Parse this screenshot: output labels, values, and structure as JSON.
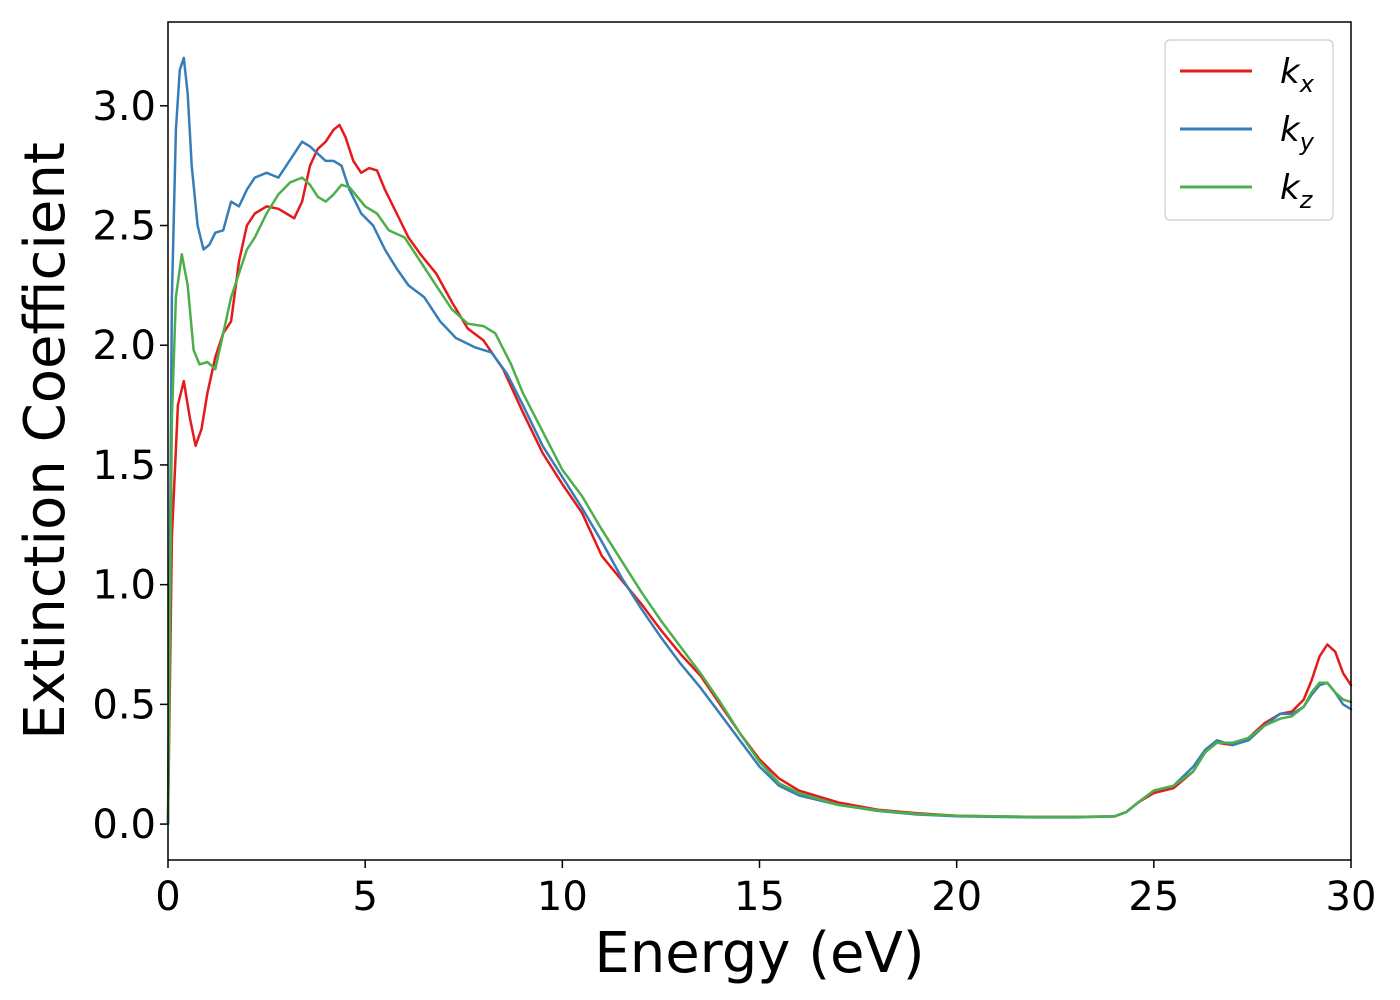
{
  "chart_data": {
    "type": "line",
    "title": "",
    "xlabel": "Energy (eV)",
    "ylabel": "Extinction Coefficient",
    "xlim": [
      0,
      30
    ],
    "ylim": [
      -0.15,
      3.35
    ],
    "xticks": [
      0,
      5,
      10,
      15,
      20,
      25,
      30
    ],
    "yticks": [
      0.0,
      0.5,
      1.0,
      1.5,
      2.0,
      2.5,
      3.0
    ],
    "xtick_labels": [
      "0",
      "5",
      "10",
      "15",
      "20",
      "25",
      "30"
    ],
    "ytick_labels": [
      "0.0",
      "0.5",
      "1.0",
      "1.5",
      "2.0",
      "2.5",
      "3.0"
    ],
    "grid": false,
    "legend": "top-right",
    "series": [
      {
        "name": "k_x",
        "label_base": "k",
        "label_sub": "x",
        "color": "#e41a1c",
        "points": [
          [
            0,
            0
          ],
          [
            0.1,
            1.2
          ],
          [
            0.25,
            1.75
          ],
          [
            0.4,
            1.85
          ],
          [
            0.55,
            1.7
          ],
          [
            0.7,
            1.58
          ],
          [
            0.85,
            1.65
          ],
          [
            1.0,
            1.8
          ],
          [
            1.2,
            1.95
          ],
          [
            1.4,
            2.05
          ],
          [
            1.6,
            2.1
          ],
          [
            1.8,
            2.35
          ],
          [
            2.0,
            2.5
          ],
          [
            2.2,
            2.55
          ],
          [
            2.5,
            2.58
          ],
          [
            2.8,
            2.57
          ],
          [
            3.0,
            2.55
          ],
          [
            3.2,
            2.53
          ],
          [
            3.4,
            2.6
          ],
          [
            3.6,
            2.75
          ],
          [
            3.8,
            2.82
          ],
          [
            4.0,
            2.85
          ],
          [
            4.2,
            2.9
          ],
          [
            4.35,
            2.92
          ],
          [
            4.5,
            2.87
          ],
          [
            4.7,
            2.77
          ],
          [
            4.9,
            2.72
          ],
          [
            5.1,
            2.74
          ],
          [
            5.3,
            2.73
          ],
          [
            5.5,
            2.65
          ],
          [
            5.8,
            2.55
          ],
          [
            6.1,
            2.45
          ],
          [
            6.4,
            2.38
          ],
          [
            6.8,
            2.3
          ],
          [
            7.2,
            2.18
          ],
          [
            7.6,
            2.07
          ],
          [
            8.0,
            2.02
          ],
          [
            8.5,
            1.9
          ],
          [
            9.0,
            1.72
          ],
          [
            9.5,
            1.55
          ],
          [
            10.0,
            1.42
          ],
          [
            10.5,
            1.3
          ],
          [
            11.0,
            1.12
          ],
          [
            11.5,
            1.02
          ],
          [
            12.0,
            0.92
          ],
          [
            12.5,
            0.81
          ],
          [
            13.0,
            0.71
          ],
          [
            13.5,
            0.62
          ],
          [
            14.0,
            0.5
          ],
          [
            14.5,
            0.38
          ],
          [
            15.0,
            0.27
          ],
          [
            15.5,
            0.19
          ],
          [
            16.0,
            0.14
          ],
          [
            17.0,
            0.09
          ],
          [
            18.0,
            0.06
          ],
          [
            19.0,
            0.045
          ],
          [
            20.0,
            0.035
          ],
          [
            21.0,
            0.032
          ],
          [
            22.0,
            0.03
          ],
          [
            23.0,
            0.03
          ],
          [
            24.0,
            0.032
          ],
          [
            24.3,
            0.05
          ],
          [
            24.6,
            0.09
          ],
          [
            25.0,
            0.13
          ],
          [
            25.5,
            0.15
          ],
          [
            26.0,
            0.22
          ],
          [
            26.3,
            0.3
          ],
          [
            26.6,
            0.34
          ],
          [
            27.0,
            0.33
          ],
          [
            27.4,
            0.36
          ],
          [
            27.8,
            0.42
          ],
          [
            28.2,
            0.46
          ],
          [
            28.5,
            0.47
          ],
          [
            28.8,
            0.52
          ],
          [
            29.0,
            0.6
          ],
          [
            29.2,
            0.7
          ],
          [
            29.4,
            0.75
          ],
          [
            29.6,
            0.72
          ],
          [
            29.8,
            0.63
          ],
          [
            30.0,
            0.58
          ]
        ]
      },
      {
        "name": "k_y",
        "label_base": "k",
        "label_sub": "y",
        "color": "#377eb8",
        "points": [
          [
            0,
            0
          ],
          [
            0.1,
            2.2
          ],
          [
            0.2,
            2.9
          ],
          [
            0.3,
            3.15
          ],
          [
            0.4,
            3.2
          ],
          [
            0.5,
            3.05
          ],
          [
            0.6,
            2.75
          ],
          [
            0.75,
            2.5
          ],
          [
            0.9,
            2.4
          ],
          [
            1.05,
            2.42
          ],
          [
            1.2,
            2.47
          ],
          [
            1.4,
            2.48
          ],
          [
            1.6,
            2.6
          ],
          [
            1.8,
            2.58
          ],
          [
            2.0,
            2.65
          ],
          [
            2.2,
            2.7
          ],
          [
            2.5,
            2.72
          ],
          [
            2.8,
            2.7
          ],
          [
            3.0,
            2.75
          ],
          [
            3.2,
            2.8
          ],
          [
            3.4,
            2.85
          ],
          [
            3.6,
            2.83
          ],
          [
            3.8,
            2.8
          ],
          [
            4.0,
            2.77
          ],
          [
            4.2,
            2.77
          ],
          [
            4.4,
            2.75
          ],
          [
            4.6,
            2.65
          ],
          [
            4.9,
            2.55
          ],
          [
            5.2,
            2.5
          ],
          [
            5.5,
            2.4
          ],
          [
            5.8,
            2.32
          ],
          [
            6.1,
            2.25
          ],
          [
            6.5,
            2.2
          ],
          [
            6.9,
            2.1
          ],
          [
            7.3,
            2.03
          ],
          [
            7.8,
            1.99
          ],
          [
            8.2,
            1.97
          ],
          [
            8.6,
            1.88
          ],
          [
            9.0,
            1.75
          ],
          [
            9.5,
            1.58
          ],
          [
            10.0,
            1.45
          ],
          [
            10.5,
            1.32
          ],
          [
            11.0,
            1.18
          ],
          [
            11.5,
            1.03
          ],
          [
            12.0,
            0.9
          ],
          [
            12.5,
            0.78
          ],
          [
            13.0,
            0.67
          ],
          [
            13.5,
            0.57
          ],
          [
            14.0,
            0.46
          ],
          [
            14.5,
            0.35
          ],
          [
            15.0,
            0.24
          ],
          [
            15.5,
            0.16
          ],
          [
            16.0,
            0.12
          ],
          [
            17.0,
            0.08
          ],
          [
            18.0,
            0.055
          ],
          [
            19.0,
            0.04
          ],
          [
            20.0,
            0.033
          ],
          [
            21.0,
            0.03
          ],
          [
            22.0,
            0.028
          ],
          [
            23.0,
            0.028
          ],
          [
            24.0,
            0.032
          ],
          [
            24.3,
            0.05
          ],
          [
            24.6,
            0.09
          ],
          [
            25.0,
            0.14
          ],
          [
            25.5,
            0.16
          ],
          [
            26.0,
            0.24
          ],
          [
            26.3,
            0.31
          ],
          [
            26.6,
            0.35
          ],
          [
            27.0,
            0.33
          ],
          [
            27.4,
            0.35
          ],
          [
            27.8,
            0.41
          ],
          [
            28.2,
            0.46
          ],
          [
            28.5,
            0.46
          ],
          [
            28.8,
            0.49
          ],
          [
            29.0,
            0.54
          ],
          [
            29.2,
            0.58
          ],
          [
            29.4,
            0.59
          ],
          [
            29.6,
            0.55
          ],
          [
            29.8,
            0.5
          ],
          [
            30.0,
            0.48
          ]
        ]
      },
      {
        "name": "k_z",
        "label_base": "k",
        "label_sub": "z",
        "color": "#4daf4a",
        "points": [
          [
            0,
            0
          ],
          [
            0.1,
            1.7
          ],
          [
            0.2,
            2.2
          ],
          [
            0.35,
            2.38
          ],
          [
            0.5,
            2.25
          ],
          [
            0.65,
            1.98
          ],
          [
            0.8,
            1.92
          ],
          [
            1.0,
            1.93
          ],
          [
            1.2,
            1.9
          ],
          [
            1.4,
            2.05
          ],
          [
            1.6,
            2.2
          ],
          [
            1.8,
            2.3
          ],
          [
            2.0,
            2.4
          ],
          [
            2.2,
            2.45
          ],
          [
            2.5,
            2.55
          ],
          [
            2.8,
            2.63
          ],
          [
            3.1,
            2.68
          ],
          [
            3.4,
            2.7
          ],
          [
            3.6,
            2.67
          ],
          [
            3.8,
            2.62
          ],
          [
            4.0,
            2.6
          ],
          [
            4.2,
            2.63
          ],
          [
            4.4,
            2.67
          ],
          [
            4.6,
            2.66
          ],
          [
            4.8,
            2.62
          ],
          [
            5.0,
            2.58
          ],
          [
            5.3,
            2.55
          ],
          [
            5.6,
            2.48
          ],
          [
            6.0,
            2.45
          ],
          [
            6.4,
            2.35
          ],
          [
            6.8,
            2.25
          ],
          [
            7.2,
            2.15
          ],
          [
            7.6,
            2.09
          ],
          [
            8.0,
            2.08
          ],
          [
            8.3,
            2.05
          ],
          [
            8.7,
            1.92
          ],
          [
            9.0,
            1.8
          ],
          [
            9.5,
            1.64
          ],
          [
            10.0,
            1.48
          ],
          [
            10.5,
            1.37
          ],
          [
            11.0,
            1.23
          ],
          [
            11.5,
            1.1
          ],
          [
            12.0,
            0.97
          ],
          [
            12.5,
            0.85
          ],
          [
            13.0,
            0.74
          ],
          [
            13.5,
            0.63
          ],
          [
            14.0,
            0.51
          ],
          [
            14.5,
            0.38
          ],
          [
            15.0,
            0.26
          ],
          [
            15.5,
            0.17
          ],
          [
            16.0,
            0.13
          ],
          [
            17.0,
            0.08
          ],
          [
            18.0,
            0.057
          ],
          [
            19.0,
            0.042
          ],
          [
            20.0,
            0.035
          ],
          [
            21.0,
            0.032
          ],
          [
            22.0,
            0.03
          ],
          [
            23.0,
            0.03
          ],
          [
            24.0,
            0.032
          ],
          [
            24.3,
            0.05
          ],
          [
            24.6,
            0.09
          ],
          [
            25.0,
            0.14
          ],
          [
            25.5,
            0.16
          ],
          [
            26.0,
            0.22
          ],
          [
            26.3,
            0.3
          ],
          [
            26.6,
            0.34
          ],
          [
            27.0,
            0.34
          ],
          [
            27.4,
            0.36
          ],
          [
            27.8,
            0.41
          ],
          [
            28.2,
            0.44
          ],
          [
            28.5,
            0.45
          ],
          [
            28.8,
            0.49
          ],
          [
            29.0,
            0.55
          ],
          [
            29.2,
            0.59
          ],
          [
            29.4,
            0.59
          ],
          [
            29.6,
            0.55
          ],
          [
            29.8,
            0.52
          ],
          [
            30.0,
            0.51
          ]
        ]
      }
    ]
  }
}
